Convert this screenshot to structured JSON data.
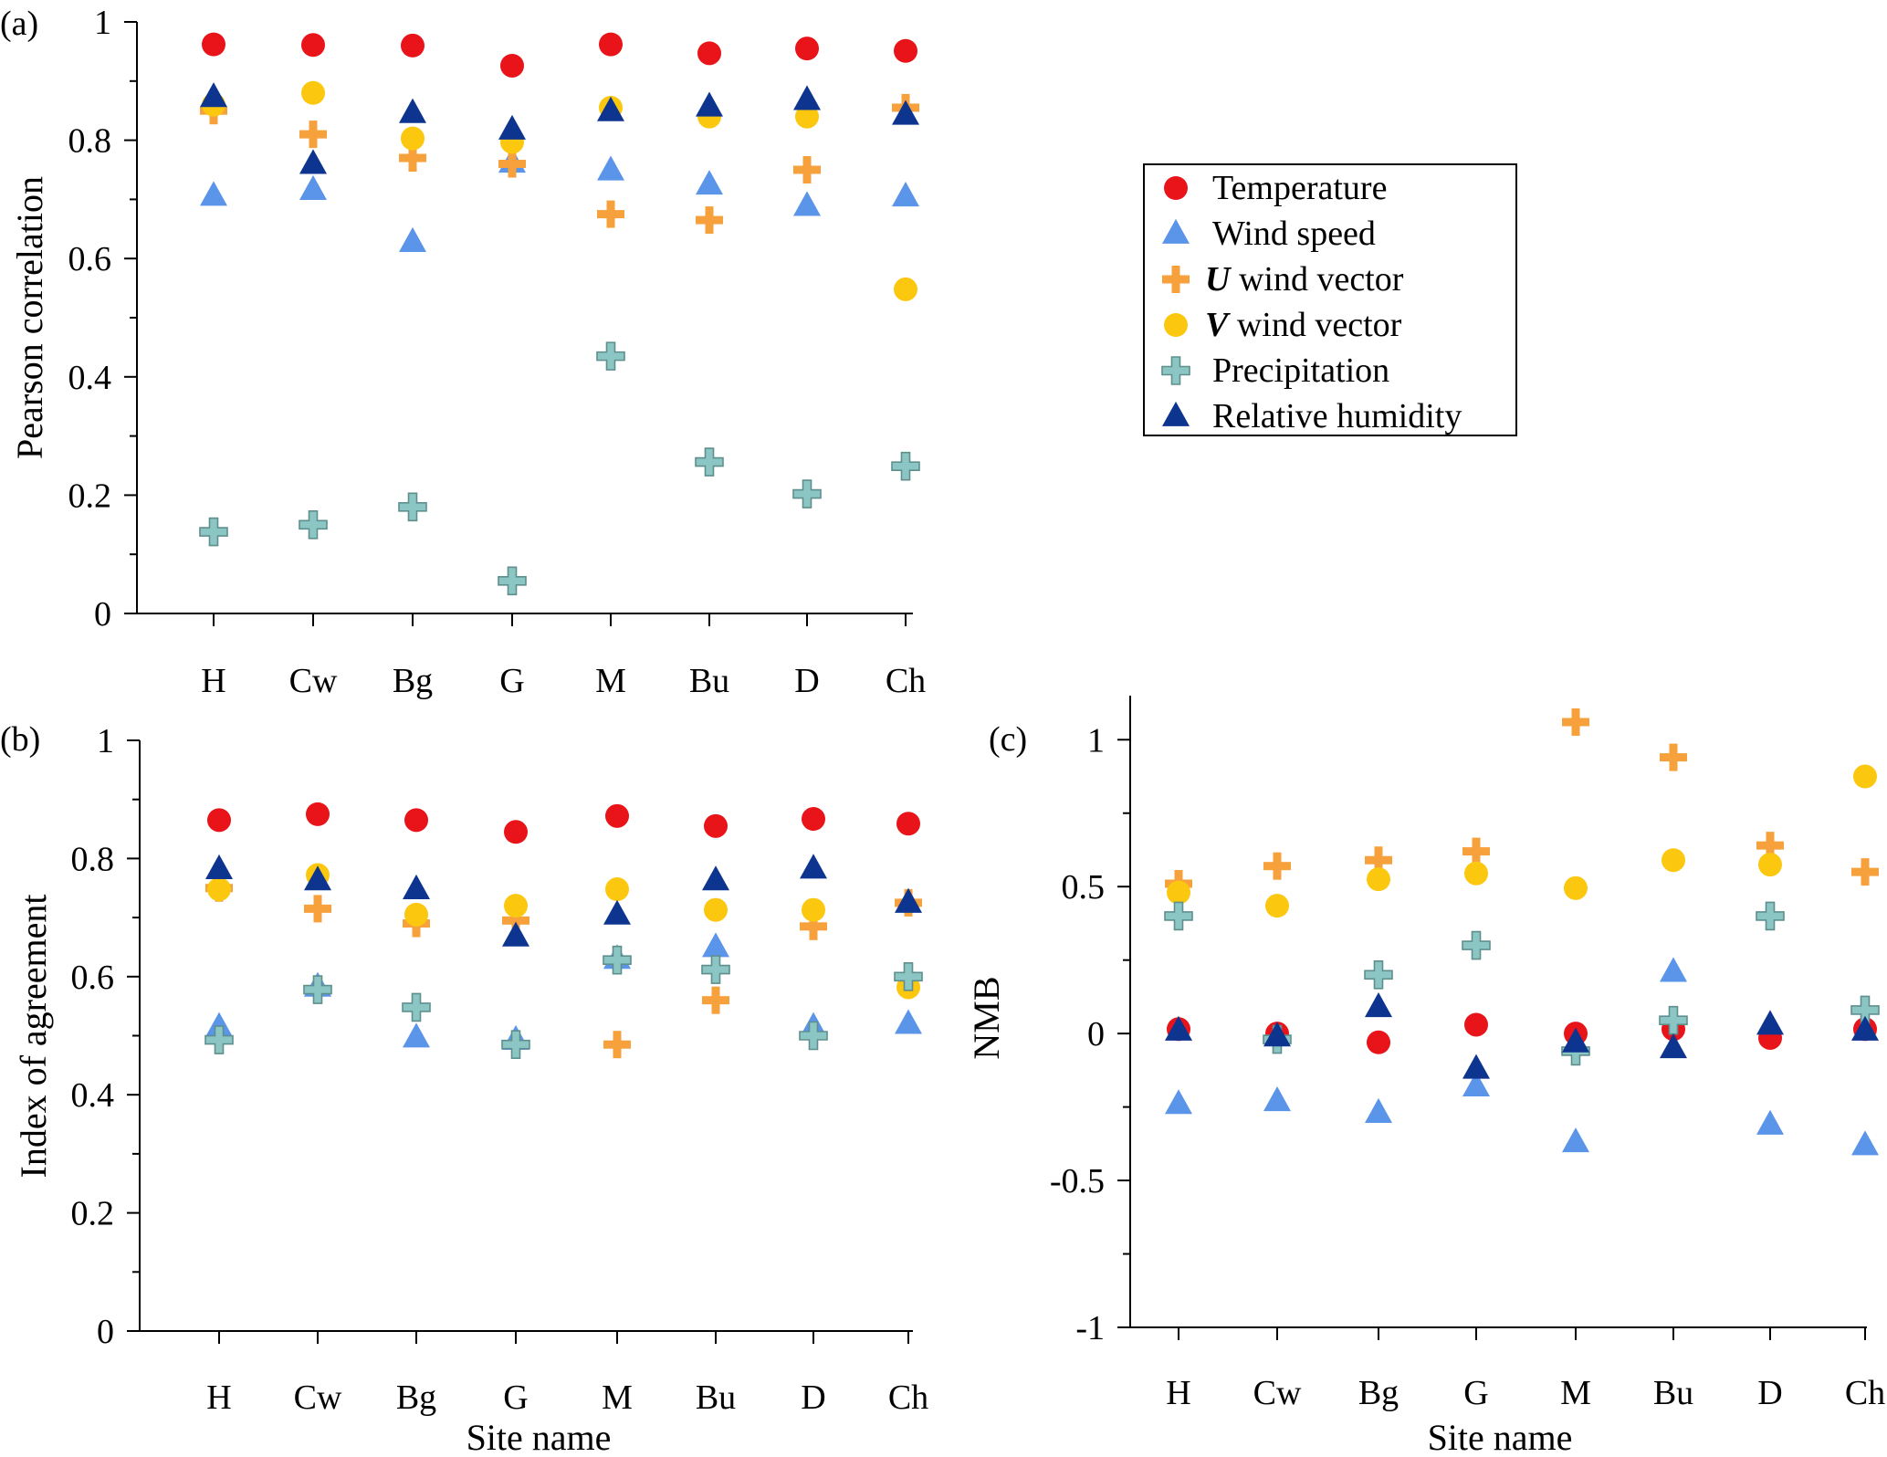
{
  "legend": {
    "items": [
      {
        "key": "temperature",
        "label": "Temperature",
        "marker": "circle",
        "color": "#e8141a"
      },
      {
        "key": "wind_speed",
        "label": "Wind speed",
        "marker": "triangle",
        "color": "#5b95ea"
      },
      {
        "key": "u_wind",
        "label_var": "U",
        "label_rest": " wind vector",
        "marker": "plus",
        "color": "#f7a13c"
      },
      {
        "key": "v_wind",
        "label_var": "V",
        "label_rest": " wind vector",
        "marker": "circle",
        "color": "#fbc70f"
      },
      {
        "key": "precipitation",
        "label": "Precipitation",
        "marker": "plus-outline",
        "color": "#8cc6c4"
      },
      {
        "key": "relative_humidity",
        "label": "Relative humidity",
        "marker": "triangle",
        "color": "#0d3590"
      }
    ]
  },
  "chart_data": [
    {
      "panel_label": "(a)",
      "type": "scatter",
      "title": "",
      "xlabel": "",
      "ylabel": "Pearson correlation",
      "categories": [
        "H",
        "Cw",
        "Bg",
        "G",
        "M",
        "Bu",
        "D",
        "Ch"
      ],
      "ylim": [
        0,
        1
      ],
      "yticks": [
        0,
        0.2,
        0.4,
        0.6,
        0.8,
        1
      ],
      "ytick_labels": [
        "0",
        "0.2",
        "0.4",
        "0.6",
        "0.8",
        "1"
      ],
      "series": [
        {
          "name": "Temperature",
          "values": [
            0.962,
            0.961,
            0.96,
            0.926,
            0.962,
            0.947,
            0.955,
            0.951
          ]
        },
        {
          "name": "Wind speed",
          "values": [
            0.706,
            0.716,
            0.628,
            0.762,
            0.749,
            0.725,
            0.689,
            0.705
          ]
        },
        {
          "name": "U wind vector",
          "values": [
            0.85,
            0.81,
            0.77,
            0.76,
            0.675,
            0.665,
            0.75,
            0.855
          ]
        },
        {
          "name": "V wind vector",
          "values": [
            0.86,
            0.88,
            0.803,
            0.797,
            0.855,
            0.84,
            0.84,
            0.548
          ]
        },
        {
          "name": "Precipitation",
          "values": [
            0.138,
            0.15,
            0.18,
            0.055,
            0.435,
            0.256,
            0.202,
            0.249
          ]
        },
        {
          "name": "Relative humidity",
          "values": [
            0.873,
            0.76,
            0.846,
            0.818,
            0.849,
            0.857,
            0.868,
            0.843
          ]
        }
      ]
    },
    {
      "panel_label": "(b)",
      "type": "scatter",
      "title": "",
      "xlabel": "Site name",
      "ylabel": "Index of agreement",
      "categories": [
        "H",
        "Cw",
        "Bg",
        "G",
        "M",
        "Bu",
        "D",
        "Ch"
      ],
      "ylim": [
        0,
        1
      ],
      "yticks": [
        0,
        0.2,
        0.4,
        0.6,
        0.8,
        1
      ],
      "ytick_labels": [
        "0",
        "0.2",
        "0.4",
        "0.6",
        "0.8",
        "1"
      ],
      "series": [
        {
          "name": "Temperature",
          "values": [
            0.865,
            0.875,
            0.865,
            0.845,
            0.872,
            0.855,
            0.867,
            0.859
          ]
        },
        {
          "name": "Wind speed",
          "values": [
            0.515,
            0.583,
            0.497,
            0.493,
            0.63,
            0.65,
            0.515,
            0.52
          ]
        },
        {
          "name": "U wind vector",
          "values": [
            0.75,
            0.715,
            0.69,
            0.695,
            0.485,
            0.56,
            0.685,
            0.725
          ]
        },
        {
          "name": "V wind vector",
          "values": [
            0.748,
            0.772,
            0.705,
            0.72,
            0.748,
            0.713,
            0.713,
            0.582
          ]
        },
        {
          "name": "Precipitation",
          "values": [
            0.493,
            0.578,
            0.548,
            0.485,
            0.628,
            0.612,
            0.5,
            0.6
          ]
        },
        {
          "name": "Relative humidity",
          "values": [
            0.782,
            0.763,
            0.748,
            0.668,
            0.705,
            0.763,
            0.783,
            0.725
          ]
        }
      ]
    },
    {
      "panel_label": "(c)",
      "type": "scatter",
      "title": "",
      "xlabel": "Site name",
      "ylabel": "NMB",
      "categories": [
        "H",
        "Cw",
        "Bg",
        "G",
        "M",
        "Bu",
        "D",
        "Ch"
      ],
      "ylim": [
        -1,
        1.15
      ],
      "yticks": [
        -1,
        -0.5,
        0,
        0.5,
        1
      ],
      "ytick_labels": [
        "-1",
        "-0.5",
        "0",
        "0.5",
        "1"
      ],
      "series": [
        {
          "name": "Temperature",
          "values": [
            0.015,
            0.0,
            -0.03,
            0.03,
            0.0,
            0.015,
            -0.015,
            0.015
          ]
        },
        {
          "name": "Wind speed",
          "values": [
            -0.24,
            -0.23,
            -0.27,
            -0.18,
            -0.37,
            0.21,
            -0.31,
            -0.38
          ]
        },
        {
          "name": "U wind vector",
          "values": [
            0.51,
            0.57,
            0.59,
            0.62,
            1.06,
            0.94,
            0.64,
            0.55
          ]
        },
        {
          "name": "V wind vector",
          "values": [
            0.48,
            0.435,
            0.525,
            0.545,
            0.495,
            0.59,
            0.575,
            0.875
          ]
        },
        {
          "name": "Precipitation",
          "values": [
            0.4,
            -0.02,
            0.2,
            0.3,
            -0.06,
            0.045,
            0.4,
            0.08
          ]
        },
        {
          "name": "Relative humidity",
          "values": [
            0.01,
            -0.01,
            0.09,
            -0.12,
            -0.03,
            -0.05,
            0.03,
            0.01
          ]
        }
      ]
    }
  ]
}
